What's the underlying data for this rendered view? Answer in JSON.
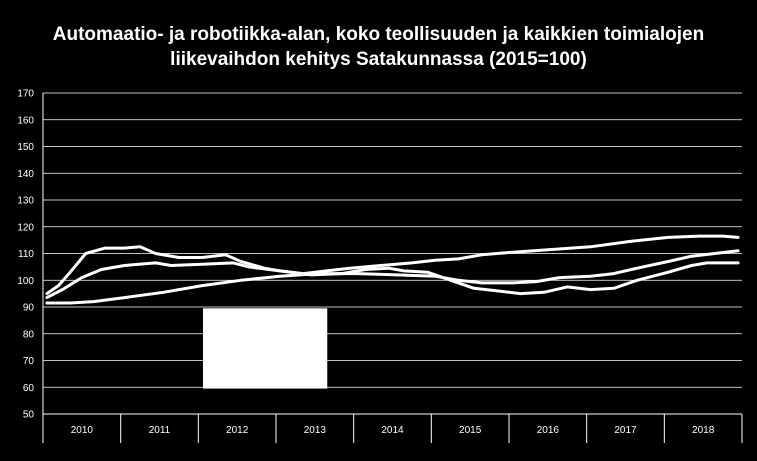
{
  "chart_data": {
    "type": "line",
    "title_line1": "Automaatio- ja robotiikka-alan, koko teollisuuden ja kaikkien toimialojen",
    "title_line2": "liikevaihdon kehitys Satakunnassa (2015=100)",
    "xlabel": "",
    "ylabel": "",
    "ylim": [
      50,
      170
    ],
    "y_ticks": [
      "50",
      "60",
      "70",
      "80",
      "90",
      "100",
      "110",
      "120",
      "130",
      "140",
      "150",
      "160",
      "170"
    ],
    "x_categories": [
      "2010",
      "2011",
      "2012",
      "2013",
      "2014",
      "2015",
      "2016",
      "2017",
      "2018"
    ],
    "x_range": [
      2009.95,
      2018.95
    ],
    "grid": true,
    "legend": "none",
    "colors": {
      "background": "#000000",
      "lines": "#ffffff",
      "grid": "#ffffff",
      "overlay": "#ffffff"
    },
    "series": [
      {
        "values": [
          [
            2010.0,
            95
          ],
          [
            2010.15,
            98
          ],
          [
            2010.3,
            103
          ],
          [
            2010.5,
            110
          ],
          [
            2010.75,
            112
          ],
          [
            2011.0,
            112
          ],
          [
            2011.2,
            112.5
          ],
          [
            2011.4,
            110
          ],
          [
            2011.7,
            108.5
          ],
          [
            2012.0,
            108.5
          ],
          [
            2012.3,
            109.5
          ],
          [
            2012.5,
            107
          ],
          [
            2012.8,
            104.5
          ],
          [
            2013.0,
            103.5
          ],
          [
            2013.3,
            102.5
          ],
          [
            2013.6,
            103.5
          ],
          [
            2013.9,
            104.5
          ],
          [
            2014.3,
            105.5
          ],
          [
            2014.7,
            106.5
          ],
          [
            2015.0,
            107.5
          ],
          [
            2015.3,
            108
          ],
          [
            2015.6,
            109.5
          ],
          [
            2016.0,
            110.5
          ],
          [
            2016.5,
            111.5
          ],
          [
            2017.0,
            112.5
          ],
          [
            2017.5,
            114.5
          ],
          [
            2018.0,
            116
          ],
          [
            2018.4,
            116.5
          ],
          [
            2018.7,
            116.5
          ],
          [
            2018.9,
            116
          ]
        ]
      },
      {
        "values": [
          [
            2010.0,
            93.5
          ],
          [
            2010.2,
            96.5
          ],
          [
            2010.45,
            101
          ],
          [
            2010.7,
            104
          ],
          [
            2011.0,
            105.5
          ],
          [
            2011.4,
            106.5
          ],
          [
            2011.6,
            105.5
          ],
          [
            2012.0,
            106
          ],
          [
            2012.4,
            106.5
          ],
          [
            2012.6,
            105
          ],
          [
            2013.0,
            103.5
          ],
          [
            2013.4,
            102
          ],
          [
            2013.8,
            102.5
          ],
          [
            2014.1,
            104
          ],
          [
            2014.4,
            104.5
          ],
          [
            2014.6,
            103.5
          ],
          [
            2014.9,
            103
          ],
          [
            2015.2,
            100
          ],
          [
            2015.5,
            97
          ],
          [
            2015.8,
            96
          ],
          [
            2016.1,
            95
          ],
          [
            2016.4,
            95.5
          ],
          [
            2016.7,
            97.5
          ],
          [
            2017.0,
            96.5
          ],
          [
            2017.3,
            97
          ],
          [
            2017.6,
            100
          ],
          [
            2018.0,
            103
          ],
          [
            2018.3,
            105.5
          ],
          [
            2018.5,
            106.5
          ],
          [
            2018.9,
            106.5
          ]
        ]
      },
      {
        "values": [
          [
            2010.0,
            91.5
          ],
          [
            2010.3,
            91.5
          ],
          [
            2010.6,
            92
          ],
          [
            2011.0,
            93.5
          ],
          [
            2011.5,
            95.5
          ],
          [
            2012.0,
            98
          ],
          [
            2012.5,
            100
          ],
          [
            2013.0,
            101.5
          ],
          [
            2013.5,
            102.5
          ],
          [
            2014.0,
            102.5
          ],
          [
            2014.5,
            102
          ],
          [
            2015.0,
            101.5
          ],
          [
            2015.3,
            100
          ],
          [
            2015.6,
            99
          ],
          [
            2016.0,
            99
          ],
          [
            2016.3,
            99.5
          ],
          [
            2016.6,
            101
          ],
          [
            2017.0,
            101.5
          ],
          [
            2017.3,
            102.5
          ],
          [
            2017.6,
            104.5
          ],
          [
            2018.0,
            107
          ],
          [
            2018.3,
            109
          ],
          [
            2018.6,
            110
          ],
          [
            2018.9,
            111
          ]
        ]
      }
    ],
    "overlay_box": {
      "x0": 2012.01,
      "x1": 2013.61,
      "y0": 59.5,
      "y1": 89.5
    }
  }
}
